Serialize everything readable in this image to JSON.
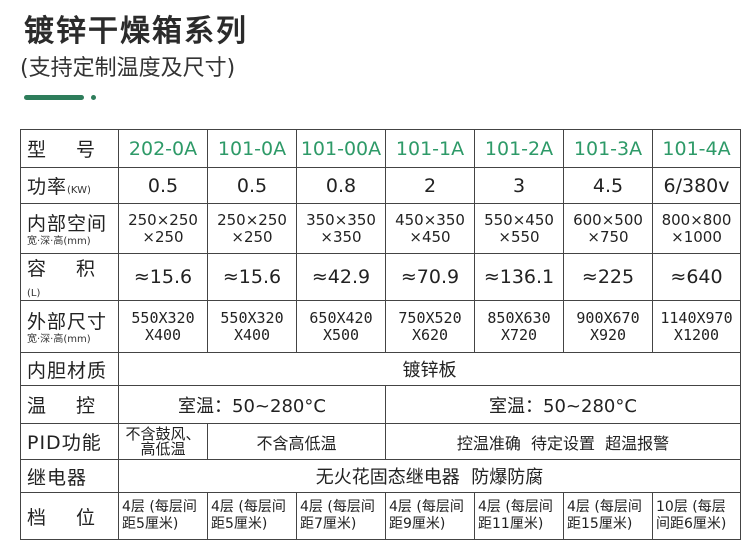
{
  "header": {
    "title": "镀锌干燥箱系列",
    "subtitle": "(支持定制温度及尺寸)"
  },
  "colors": {
    "accent": "#2e7d5b",
    "model_text": "#2e9a68",
    "border": "#444444"
  },
  "table": {
    "labels": {
      "model": "型 号",
      "power": "功率",
      "power_unit": "(KW)",
      "inner": "内部空间",
      "inner_sub": "宽·深·高(mm)",
      "volume": "容 积",
      "volume_unit": "(L)",
      "outer": "外部尺寸",
      "outer_sub": "宽·深·高(mm)",
      "liner": "内胆材质",
      "temp": "温 控",
      "pid": "PID功能",
      "relay": "继电器",
      "tiers": "档 位"
    },
    "models": [
      "202-0A",
      "101-0A",
      "101-00A",
      "101-1A",
      "101-2A",
      "101-3A",
      "101-4A"
    ],
    "power": [
      "0.5",
      "0.5",
      "0.8",
      "2",
      "3",
      "4.5",
      "6/380v"
    ],
    "inner": [
      [
        "250×250",
        "×250"
      ],
      [
        "250×250",
        "×250"
      ],
      [
        "350×350",
        "×350"
      ],
      [
        "450×350",
        "×450"
      ],
      [
        "550×450",
        "×550"
      ],
      [
        "600×500",
        "×750"
      ],
      [
        "800×800",
        "×1000"
      ]
    ],
    "volume": [
      "≈15.6",
      "≈15.6",
      "≈42.9",
      "≈70.9",
      "≈136.1",
      "≈225",
      "≈640"
    ],
    "outer": [
      [
        "550X320",
        "X400"
      ],
      [
        "550X320",
        "X400"
      ],
      [
        "650X420",
        "X500"
      ],
      [
        "750X520",
        "X620"
      ],
      [
        "850X630",
        "X720"
      ],
      [
        "900X670",
        "X920"
      ],
      [
        "1140X970",
        "X1200"
      ]
    ],
    "liner": "镀锌板",
    "temp": [
      "室温：50~280°C",
      "室温：50~280°C"
    ],
    "pid": [
      "不含鼓风、",
      "高低温",
      "不含高低温",
      "控温准确  待定设置  超温报警"
    ],
    "relay": "无火花固态继电器  防爆防腐",
    "tiers": [
      [
        "4层 (每层间",
        "距5厘米)"
      ],
      [
        "4层 (每层间",
        "距5厘米)"
      ],
      [
        "4层 (每层间",
        "距7厘米)"
      ],
      [
        "4层 (每层间",
        "距9厘米)"
      ],
      [
        "4层 (每层间",
        "距11厘米)"
      ],
      [
        "4层 (每层间",
        "距15厘米)"
      ],
      [
        "10层 (每层",
        "间距6厘米)"
      ]
    ]
  }
}
